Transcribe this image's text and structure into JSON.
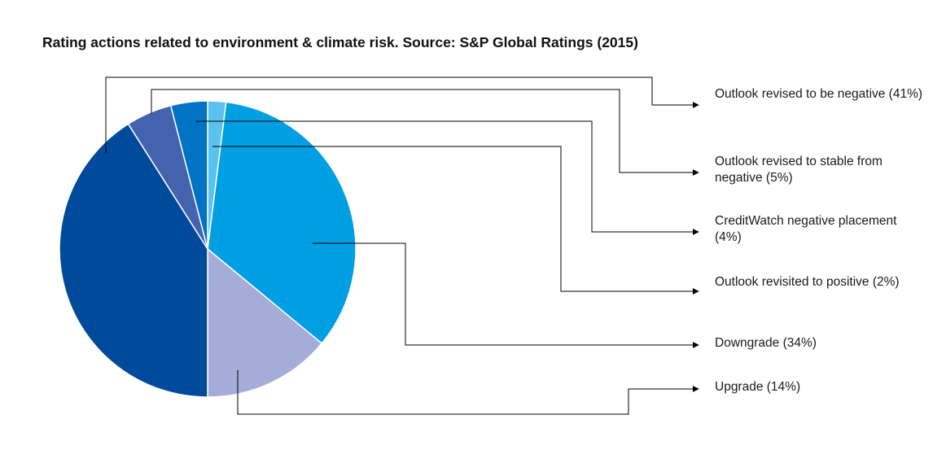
{
  "chart_data": {
    "type": "pie",
    "title": "Rating actions related to environment & climate risk. Source: S&P Global Ratings (2015)",
    "slices": [
      {
        "label": "Outlook revisited to positive (2%)",
        "value": 2,
        "color": "#5bc2ee"
      },
      {
        "label": "Downgrade (34%)",
        "value": 34,
        "color": "#009ee2"
      },
      {
        "label": "Upgrade (14%)",
        "value": 14,
        "color": "#a5acd8"
      },
      {
        "label": "Outlook revised to be negative (41%)",
        "value": 41,
        "color": "#004a9c"
      },
      {
        "label": "Outlook revised to stable from negative (5%)",
        "value": 5,
        "color": "#4462ad"
      },
      {
        "label": "CreditWatch negative placement (4%)",
        "value": 4,
        "color": "#0073c5"
      }
    ],
    "legend_placement": "right"
  }
}
